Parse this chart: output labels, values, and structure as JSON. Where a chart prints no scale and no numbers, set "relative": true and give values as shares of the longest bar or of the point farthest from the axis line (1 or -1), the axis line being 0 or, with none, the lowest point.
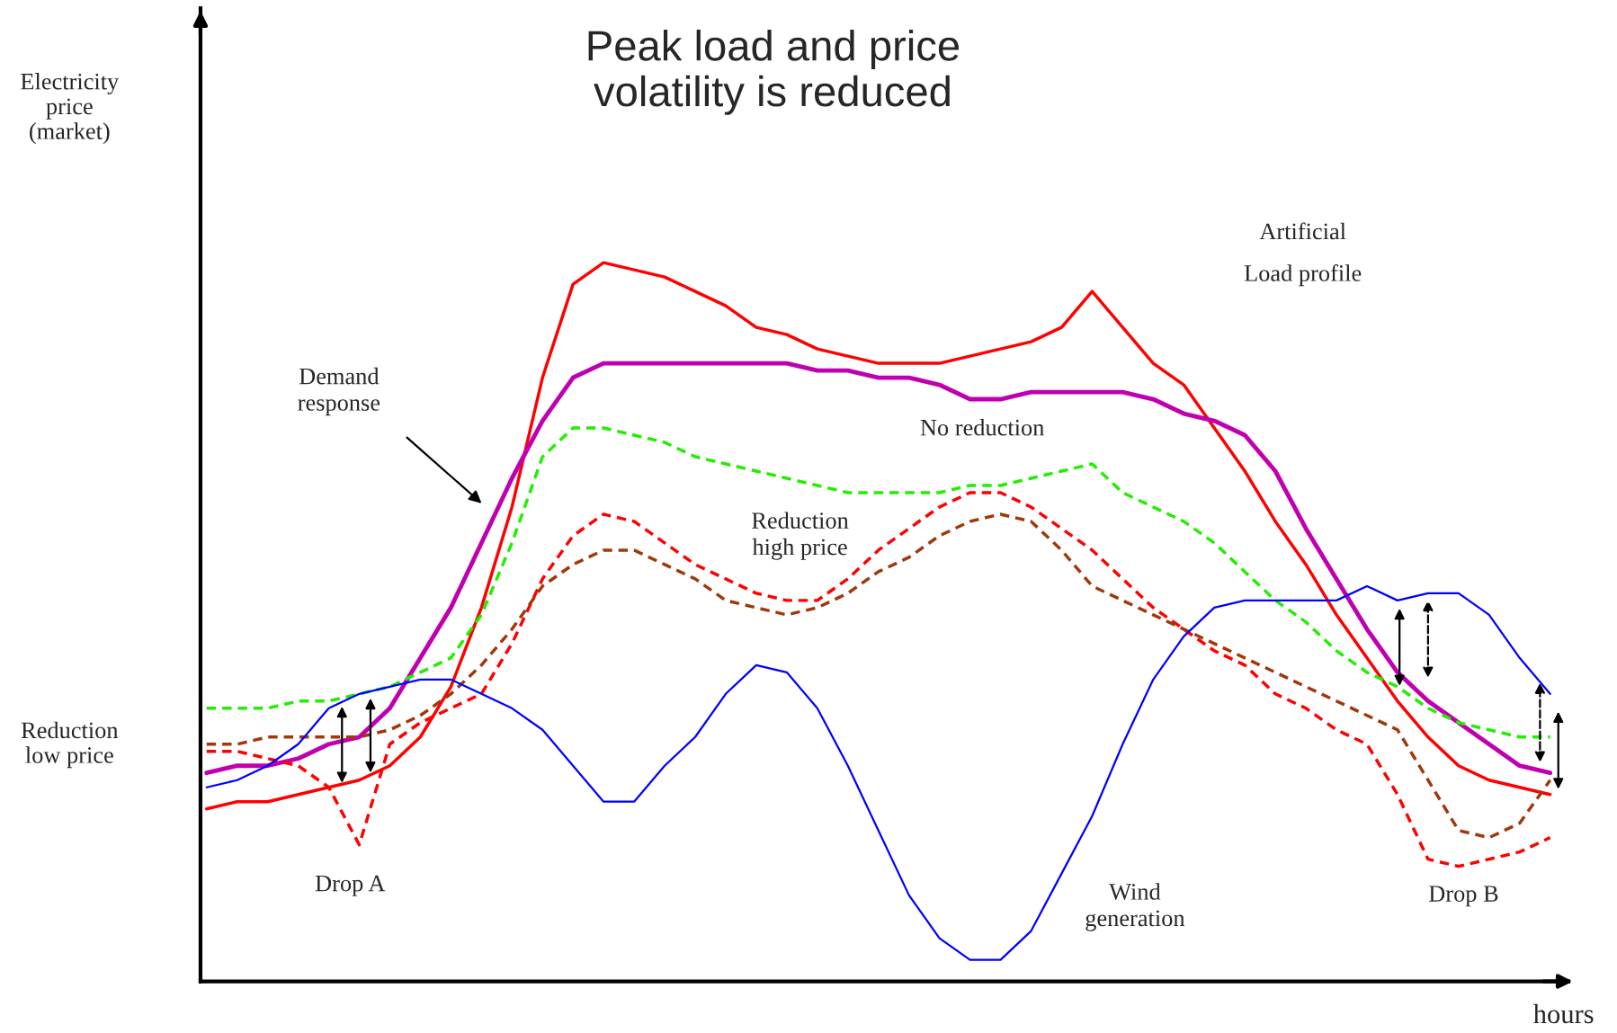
{
  "chart_data": {
    "type": "line",
    "title": "Peak load and price\nvolatility is reduced",
    "xlabel": "hours",
    "relative": true,
    "grid": false,
    "legend": false,
    "categories": [
      null,
      null,
      null,
      null,
      null,
      null,
      null,
      null,
      null,
      null,
      null,
      null,
      null,
      null,
      null,
      null,
      null,
      null,
      null,
      null,
      null,
      null,
      null,
      null,
      null,
      null,
      null,
      null,
      null,
      null,
      null,
      null,
      null,
      null,
      null,
      null,
      null,
      null,
      null,
      null,
      null,
      null,
      null,
      null,
      null
    ],
    "series": [
      {
        "color": "#ff0000",
        "line_style": "solid",
        "values": [
          0.24,
          0.25,
          0.25,
          0.26,
          0.27,
          0.28,
          0.3,
          0.34,
          0.41,
          0.52,
          0.66,
          0.84,
          0.97,
          1.0,
          0.99,
          0.98,
          0.96,
          0.94,
          0.91,
          0.9,
          0.88,
          0.87,
          0.86,
          0.86,
          0.86,
          0.87,
          0.88,
          0.89,
          0.91,
          0.96,
          0.91,
          0.86,
          0.83,
          0.77,
          0.71,
          0.64,
          0.58,
          0.51,
          0.45,
          0.39,
          0.34,
          0.3,
          0.28,
          0.27,
          0.26
        ]
      },
      {
        "color": "#c000b0",
        "line_style": "solid",
        "values": [
          0.29,
          0.3,
          0.3,
          0.31,
          0.33,
          0.34,
          0.38,
          0.45,
          0.52,
          0.61,
          0.7,
          0.78,
          0.84,
          0.86,
          0.86,
          0.86,
          0.86,
          0.86,
          0.86,
          0.86,
          0.85,
          0.85,
          0.84,
          0.84,
          0.83,
          0.81,
          0.81,
          0.82,
          0.82,
          0.82,
          0.82,
          0.81,
          0.79,
          0.78,
          0.76,
          0.71,
          0.63,
          0.56,
          0.49,
          0.43,
          0.39,
          0.36,
          0.33,
          0.3,
          0.29
        ]
      },
      {
        "color": "#22ee00",
        "line_style": "dashed",
        "values": [
          0.38,
          0.38,
          0.38,
          0.39,
          0.39,
          0.4,
          0.41,
          0.43,
          0.45,
          0.51,
          0.61,
          0.73,
          0.77,
          0.77,
          0.76,
          0.75,
          0.73,
          0.72,
          0.71,
          0.7,
          0.69,
          0.68,
          0.68,
          0.68,
          0.68,
          0.69,
          0.69,
          0.7,
          0.71,
          0.72,
          0.68,
          0.66,
          0.64,
          0.61,
          0.57,
          0.53,
          0.5,
          0.46,
          0.43,
          0.41,
          0.38,
          0.36,
          0.35,
          0.34,
          0.34
        ]
      },
      {
        "color": "#ff0000",
        "line_style": "dashed",
        "values": [
          0.32,
          0.32,
          0.31,
          0.3,
          0.27,
          0.19,
          0.33,
          0.36,
          0.38,
          0.4,
          0.47,
          0.56,
          0.62,
          0.65,
          0.64,
          0.61,
          0.58,
          0.56,
          0.54,
          0.53,
          0.53,
          0.56,
          0.6,
          0.63,
          0.66,
          0.68,
          0.68,
          0.66,
          0.63,
          0.6,
          0.56,
          0.52,
          0.49,
          0.46,
          0.44,
          0.4,
          0.38,
          0.35,
          0.33,
          0.26,
          0.17,
          0.16,
          0.17,
          0.18,
          0.2
        ]
      },
      {
        "color": "#a0380a",
        "line_style": "dashed",
        "values": [
          0.33,
          0.33,
          0.34,
          0.34,
          0.34,
          0.34,
          0.35,
          0.37,
          0.4,
          0.44,
          0.49,
          0.55,
          0.58,
          0.6,
          0.6,
          0.58,
          0.56,
          0.53,
          0.52,
          0.51,
          0.52,
          0.54,
          0.57,
          0.59,
          0.62,
          0.64,
          0.65,
          0.64,
          0.6,
          0.55,
          0.53,
          0.51,
          0.49,
          0.47,
          0.45,
          0.43,
          0.41,
          0.39,
          0.37,
          0.35,
          0.28,
          0.21,
          0.2,
          0.22,
          0.28
        ]
      },
      {
        "color": "#0000ff",
        "line_style": "solid",
        "values": [
          0.27,
          0.28,
          0.3,
          0.33,
          0.38,
          0.4,
          0.41,
          0.42,
          0.42,
          0.4,
          0.38,
          0.35,
          0.3,
          0.25,
          0.25,
          0.3,
          0.34,
          0.4,
          0.44,
          0.43,
          0.38,
          0.3,
          0.21,
          0.12,
          0.06,
          0.03,
          0.03,
          0.07,
          0.15,
          0.23,
          0.33,
          0.42,
          0.48,
          0.52,
          0.53,
          0.53,
          0.53,
          0.53,
          0.55,
          0.53,
          0.54,
          0.54,
          0.51,
          0.45,
          0.4
        ]
      }
    ],
    "annotations": [
      "Electricity\nprice\n(market)",
      "Reduction\nlow price",
      "Demand\nresponse",
      "No reduction",
      "Reduction\nhigh price",
      "Artificial\nLoad profile",
      "Drop A",
      "Wind\ngeneration",
      "Drop B"
    ]
  }
}
